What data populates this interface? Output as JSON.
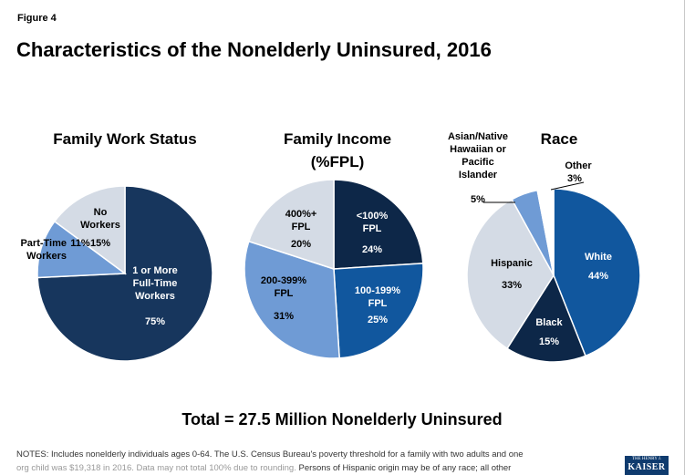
{
  "figure_label": "Figure 4",
  "title": "Characteristics of the Nonelderly Uninsured, 2016",
  "total_label": "Total = 27.5 Million Nonelderly Uninsured",
  "notes": {
    "line1": "NOTES: Includes nonelderly individuals ages 0-64. The U.S. Census Bureau's poverty threshold for a family with two adults and one",
    "line2_faded": "org child was $19,318 in 2016. Data may not total 100% due to rounding.",
    "line2_rest": " Persons of Hispanic origin may be of any race; all other"
  },
  "logo": {
    "line1": "THE HENRY J.",
    "line2": "KAISER"
  },
  "chart_data": [
    {
      "type": "pie",
      "title": "Family Work Status",
      "slices": [
        {
          "name": "1 or More Full-Time Workers",
          "value": 75,
          "color": "#17365d",
          "label_lines": [
            "1 or More",
            "Full-Time",
            "Workers"
          ],
          "value_text": "75%"
        },
        {
          "name": "Part-Time Workers",
          "value": 11,
          "color": "#6f9bd5",
          "label_lines": [
            "Part-Time",
            "Workers"
          ],
          "value_text": "11%"
        },
        {
          "name": "No Workers",
          "value": 15,
          "color": "#d4dbe5",
          "label_lines": [
            "No",
            "Workers"
          ],
          "value_text": "15%"
        }
      ]
    },
    {
      "type": "pie",
      "title": "Family Income (%FPL)",
      "title_lines": [
        "Family Income",
        "(%FPL)"
      ],
      "slices": [
        {
          "name": "<100% FPL",
          "value": 24,
          "color": "#0d2748",
          "label_lines": [
            "<100%",
            "FPL"
          ],
          "value_text": "24%"
        },
        {
          "name": "100-199% FPL",
          "value": 25,
          "color": "#11579e",
          "label_lines": [
            "100-199%",
            "FPL"
          ],
          "value_text": "25%"
        },
        {
          "name": "200-399% FPL",
          "value": 31,
          "color": "#6f9bd5",
          "label_lines": [
            "200-399%",
            "FPL"
          ],
          "value_text": "31%"
        },
        {
          "name": "400%+ FPL",
          "value": 20,
          "color": "#d4dbe5",
          "label_lines": [
            "400%+",
            "FPL"
          ],
          "value_text": "20%"
        }
      ]
    },
    {
      "type": "pie",
      "title": "Race",
      "slices": [
        {
          "name": "White",
          "value": 44,
          "color": "#11579e",
          "label_lines": [
            "White"
          ],
          "value_text": "44%"
        },
        {
          "name": "Black",
          "value": 15,
          "color": "#0d2748",
          "label_lines": [
            "Black"
          ],
          "value_text": "15%"
        },
        {
          "name": "Hispanic",
          "value": 33,
          "color": "#d4dbe5",
          "label_lines": [
            "Hispanic"
          ],
          "value_text": "33%"
        },
        {
          "name": "Asian/Native Hawaiian or Pacific Islander",
          "value": 5,
          "color": "#6f9bd5",
          "label_lines": [
            "Asian/Native",
            "Hawaiian or",
            "Pacific",
            "Islander"
          ],
          "value_text": "5%"
        },
        {
          "name": "Other",
          "value": 3,
          "color": "#ffffff",
          "label_lines": [
            "Other"
          ],
          "value_text": "3%"
        }
      ]
    }
  ]
}
